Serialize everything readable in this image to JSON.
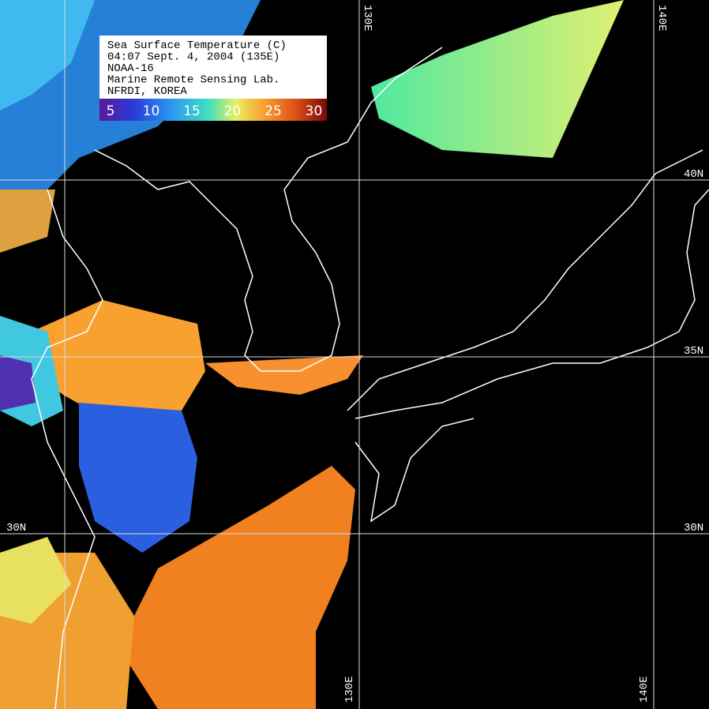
{
  "info_box": {
    "lines": [
      "Sea Surface Temperature (C)",
      "04:07  Sept. 4, 2004 (135E)",
      "NOAA-16",
      "Marine Remote Sensing Lab.",
      "NFRDI, KOREA"
    ],
    "scale_labels": [
      5,
      10,
      15,
      20,
      25,
      30
    ]
  },
  "grid_labels": {
    "top": [
      "130E",
      "140E"
    ],
    "bottom": [
      "130E",
      "140E"
    ],
    "right": [
      "40N",
      "35N",
      "30N"
    ],
    "left": [
      "30N"
    ]
  }
}
